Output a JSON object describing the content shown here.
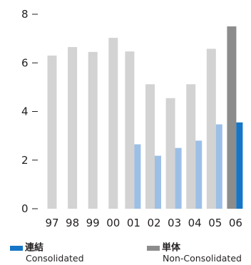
{
  "chart_data": {
    "type": "bar",
    "categories": [
      "97",
      "98",
      "99",
      "00",
      "01",
      "02",
      "03",
      "04",
      "05",
      "06"
    ],
    "ylim": [
      0,
      8
    ],
    "yticks": [
      0,
      2,
      4,
      6,
      8
    ],
    "grid": false,
    "legend_position": "bottom",
    "series": [
      {
        "name_jp": "単体",
        "name_en": "Non-Consolidated",
        "color": "#d3d3d3",
        "highlight_color": "#8c8c8c",
        "values": [
          6.3,
          6.65,
          6.45,
          7.03,
          6.47,
          5.12,
          4.55,
          5.12,
          6.58,
          7.5
        ]
      },
      {
        "name_jp": "連結",
        "name_en": "Consolidated",
        "color": "#9cbfe6",
        "highlight_color": "#1576c7",
        "values": [
          null,
          null,
          null,
          null,
          2.65,
          2.18,
          2.5,
          2.8,
          3.47,
          3.55
        ]
      }
    ]
  },
  "legend": {
    "consolidated": {
      "jp": "連結",
      "en": "Consolidated",
      "color": "#1576c7"
    },
    "non_consolidated": {
      "jp": "単体",
      "en": "Non-Consolidated",
      "color": "#8c8c8c"
    }
  }
}
